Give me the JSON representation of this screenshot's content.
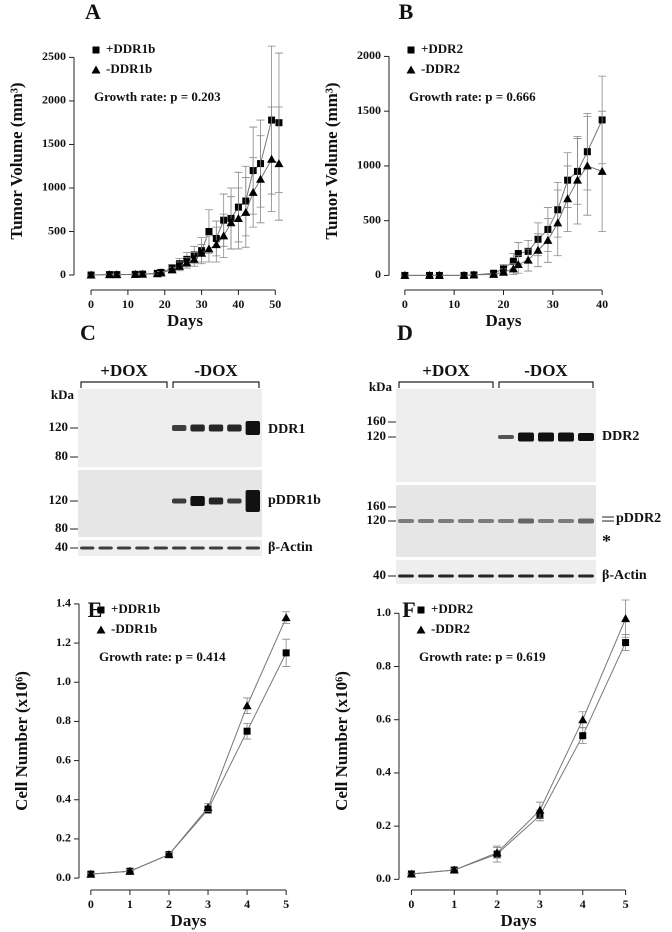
{
  "chart_data": [
    {
      "type": "line",
      "panel": "A",
      "xlabel": "Days",
      "ylabel": "Tumor Volume (mm³)",
      "annotation": "Growth rate: p = 0.203",
      "x": [
        0,
        5,
        7,
        12,
        14,
        18,
        19,
        22,
        24,
        26,
        28,
        30,
        32,
        34,
        36,
        38,
        40,
        42,
        44,
        46,
        49,
        51
      ],
      "series": [
        {
          "name": "+DDR1b",
          "marker": "square",
          "color": "#000000",
          "values": [
            0,
            5,
            5,
            8,
            10,
            20,
            30,
            80,
            130,
            180,
            230,
            280,
            500,
            420,
            630,
            650,
            780,
            850,
            1200,
            1280,
            1780,
            1750
          ],
          "errors": [
            0,
            5,
            5,
            5,
            10,
            15,
            20,
            40,
            60,
            80,
            100,
            150,
            250,
            200,
            300,
            350,
            400,
            400,
            500,
            500,
            850,
            800
          ]
        },
        {
          "name": "-DDR1b",
          "marker": "triangle",
          "color": "#000000",
          "values": [
            0,
            5,
            5,
            8,
            10,
            15,
            25,
            60,
            100,
            140,
            180,
            250,
            300,
            350,
            450,
            600,
            650,
            720,
            950,
            1100,
            1330,
            1280
          ],
          "errors": [
            0,
            5,
            5,
            5,
            8,
            10,
            15,
            30,
            50,
            60,
            80,
            100,
            150,
            200,
            250,
            300,
            350,
            400,
            400,
            500,
            600,
            650
          ]
        }
      ],
      "xlim": [
        -3,
        54
      ],
      "ylim": [
        -80,
        2700
      ],
      "xticks": [
        0,
        10,
        20,
        30,
        40,
        50
      ],
      "yticks": [
        0,
        500,
        1000,
        1500,
        2000,
        2500
      ],
      "legend": "upper left"
    },
    {
      "type": "line",
      "panel": "B",
      "xlabel": "Days",
      "ylabel": "Tumor Volume (mm³)",
      "annotation": "Growth rate: p = 0.666",
      "x": [
        0,
        5,
        7,
        12,
        14,
        18,
        20,
        22,
        23,
        25,
        27,
        29,
        31,
        33,
        35,
        37,
        40
      ],
      "series": [
        {
          "name": "+DDR2",
          "marker": "square",
          "color": "#000000",
          "values": [
            0,
            0,
            0,
            0,
            5,
            20,
            60,
            130,
            200,
            220,
            330,
            420,
            600,
            870,
            950,
            1130,
            1420
          ],
          "errors": [
            0,
            0,
            0,
            0,
            5,
            15,
            40,
            70,
            100,
            100,
            150,
            200,
            250,
            250,
            300,
            350,
            400
          ]
        },
        {
          "name": "-DDR2",
          "marker": "triangle",
          "color": "#000000",
          "values": [
            0,
            0,
            0,
            0,
            5,
            10,
            30,
            60,
            100,
            140,
            230,
            320,
            480,
            700,
            870,
            1000,
            950
          ],
          "errors": [
            0,
            0,
            0,
            0,
            5,
            10,
            30,
            50,
            80,
            100,
            150,
            200,
            300,
            300,
            400,
            450,
            550
          ]
        }
      ],
      "xlim": [
        -2,
        42
      ],
      "ylim": [
        -60,
        2150
      ],
      "xticks": [
        0,
        10,
        20,
        30,
        40
      ],
      "yticks": [
        0,
        500,
        1000,
        1500,
        2000
      ],
      "legend": "upper left"
    },
    {
      "type": "line",
      "panel": "E",
      "xlabel": "Days",
      "ylabel": "Cell Number (x10⁶)",
      "annotation": "Growth rate: p = 0.414",
      "x": [
        0,
        1,
        2,
        3,
        4,
        5
      ],
      "series": [
        {
          "name": "+DDR1b",
          "marker": "square",
          "color": "#000000",
          "values": [
            0.02,
            0.035,
            0.12,
            0.35,
            0.75,
            1.15
          ],
          "errors": [
            0.005,
            0.01,
            0.01,
            0.02,
            0.04,
            0.07
          ]
        },
        {
          "name": "-DDR1b",
          "marker": "triangle",
          "color": "#000000",
          "values": [
            0.02,
            0.035,
            0.12,
            0.36,
            0.88,
            1.33
          ],
          "errors": [
            0.005,
            0.01,
            0.01,
            0.02,
            0.04,
            0.03
          ]
        }
      ],
      "xlim": [
        -0.15,
        5.15
      ],
      "ylim": [
        -0.02,
        1.42
      ],
      "xticks": [
        0,
        1,
        2,
        3,
        4,
        5
      ],
      "yticks": [
        {
          "value": 0,
          "label": "0.0"
        },
        0.2,
        0.4,
        0.6,
        0.8,
        {
          "value": 1,
          "label": "1.0"
        },
        1.2,
        1.4
      ],
      "legend": "upper left"
    },
    {
      "type": "line",
      "panel": "F",
      "xlabel": "Days",
      "ylabel": "Cell Number (x10⁶)",
      "annotation": "Growth rate: p = 0.619",
      "x": [
        0,
        1,
        2,
        3,
        4,
        5
      ],
      "series": [
        {
          "name": "+DDR2",
          "marker": "square",
          "color": "#000000",
          "values": [
            0.02,
            0.035,
            0.095,
            0.24,
            0.54,
            0.89
          ],
          "errors": [
            0.003,
            0.005,
            0.03,
            0.02,
            0.03,
            0.03
          ]
        },
        {
          "name": "-DDR2",
          "marker": "triangle",
          "color": "#000000",
          "values": [
            0.02,
            0.035,
            0.1,
            0.26,
            0.6,
            0.98
          ],
          "errors": [
            0.003,
            0.005,
            0.02,
            0.03,
            0.03,
            0.07
          ]
        }
      ],
      "xlim": [
        -0.15,
        5.15
      ],
      "ylim": [
        -0.01,
        1.05
      ],
      "xticks": [
        0,
        1,
        2,
        3,
        4,
        5
      ],
      "yticks": [
        {
          "value": 0,
          "label": "0.0"
        },
        0.2,
        0.4,
        0.6,
        0.8,
        {
          "value": 1,
          "label": "1.0"
        }
      ],
      "legend": "upper left"
    }
  ],
  "blots": [
    {
      "panel": "C",
      "groups": [
        "+DOX",
        "-DOX"
      ],
      "unit": "kDa",
      "rows": [
        {
          "markers": [
            "120",
            "80"
          ],
          "label": "DDR1"
        },
        {
          "markers": [
            "120",
            "80"
          ],
          "label": "pDDR1b"
        },
        {
          "markers": [
            "40"
          ],
          "label": "β-Actin"
        }
      ]
    },
    {
      "panel": "D",
      "groups": [
        "+DOX",
        "-DOX"
      ],
      "unit": "kDa",
      "rows": [
        {
          "markers": [
            "160",
            "120"
          ],
          "label": "DDR2"
        },
        {
          "markers": [
            "160",
            "120"
          ],
          "label": "pDDR2",
          "note": "*"
        },
        {
          "markers": [
            "40"
          ],
          "label": "β-Actin"
        }
      ]
    }
  ]
}
